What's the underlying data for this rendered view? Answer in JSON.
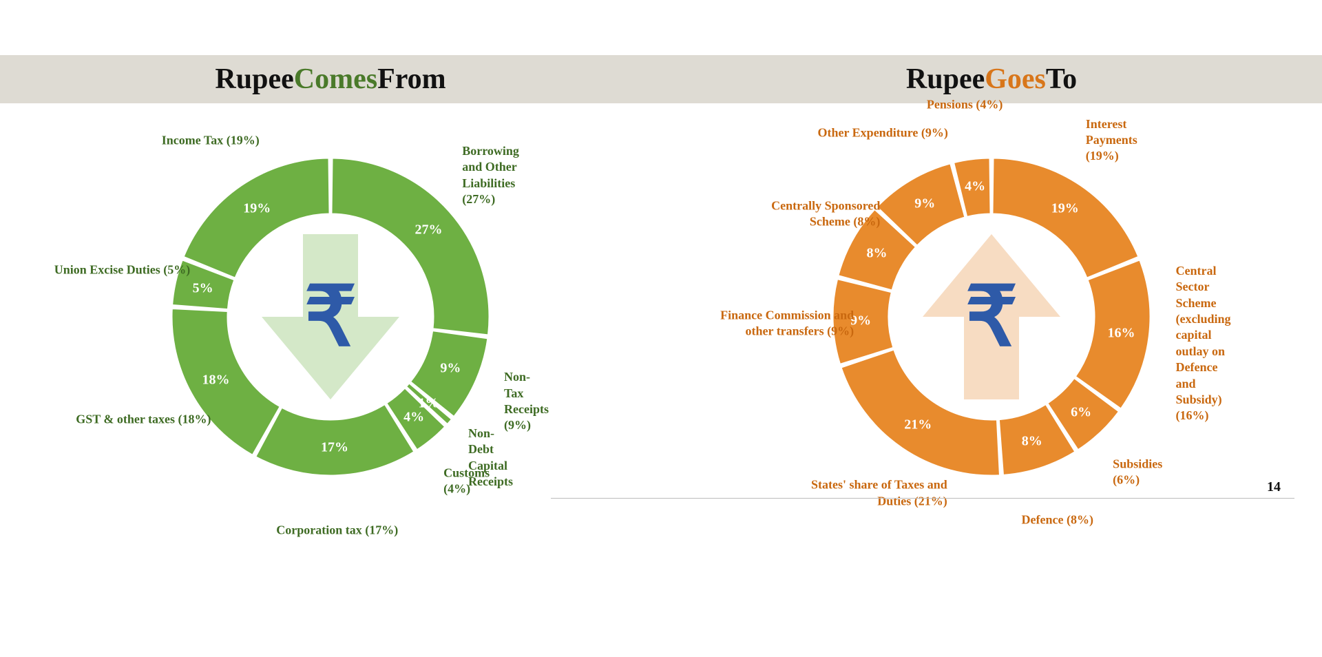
{
  "page_number": "14",
  "title_bar_bg": "#dedbd3",
  "rupee_color": "#2e5aa8",
  "left": {
    "title_parts": [
      "Rupee ",
      "Comes",
      " From"
    ],
    "accent_color": "#4a7a2a",
    "slice_color": "#6eb043",
    "slice_sep_color": "#ffffff",
    "arrow_fill": "#d4e8c8",
    "arrow_dir": "down",
    "label_color_class": "green",
    "slices": [
      {
        "label": "Borrowing and Other Liabilities (27%)",
        "value": 27,
        "pct": "27%"
      },
      {
        "label": "Non-Tax Receipts (9%)",
        "value": 9,
        "pct": "9%"
      },
      {
        "label": "Non-Debt Capital Receipts",
        "value": 1,
        "pct": "1%"
      },
      {
        "label": "Customs (4%)",
        "value": 4,
        "pct": "4%"
      },
      {
        "label": "Corporation tax (17%)",
        "value": 17,
        "pct": "17%"
      },
      {
        "label": "GST & other taxes (18%)",
        "value": 18,
        "pct": "18%"
      },
      {
        "label": "Union Excise Duties (5%)",
        "value": 5,
        "pct": "5%"
      },
      {
        "label": "Income Tax (19%)",
        "value": 19,
        "pct": "19%"
      }
    ]
  },
  "right": {
    "title_parts": [
      "Rupee ",
      "Goes",
      " To"
    ],
    "accent_color": "#d8761a",
    "slice_color": "#e88b2d",
    "slice_sep_color": "#ffffff",
    "arrow_fill": "#f7dcc2",
    "arrow_dir": "up",
    "label_color_class": "orange",
    "slices": [
      {
        "label": "Interest Payments (19%)",
        "value": 19,
        "pct": "19%"
      },
      {
        "label": "Central Sector Scheme (excluding capital outlay on Defence and Subsidy) (16%)",
        "value": 16,
        "pct": "16%"
      },
      {
        "label": "Subsidies (6%)",
        "value": 6,
        "pct": "6%"
      },
      {
        "label": "Defence (8%)",
        "value": 8,
        "pct": "8%"
      },
      {
        "label": "States' share of Taxes and Duties (21%)",
        "value": 21,
        "pct": "21%"
      },
      {
        "label": "Finance Commission and other transfers (9%)",
        "value": 9,
        "pct": "9%"
      },
      {
        "label": "Centrally Sponsored Scheme (8%)",
        "value": 8,
        "pct": "8%"
      },
      {
        "label": "Other Expenditure (9%)",
        "value": 9,
        "pct": "9%"
      },
      {
        "label": "Pensions (4%)",
        "value": 4,
        "pct": "4%"
      }
    ]
  },
  "donut": {
    "outer_r": 230,
    "inner_r": 150,
    "gap_deg": 1.5,
    "inner_label_r": 190,
    "outer_label_r": 310
  }
}
